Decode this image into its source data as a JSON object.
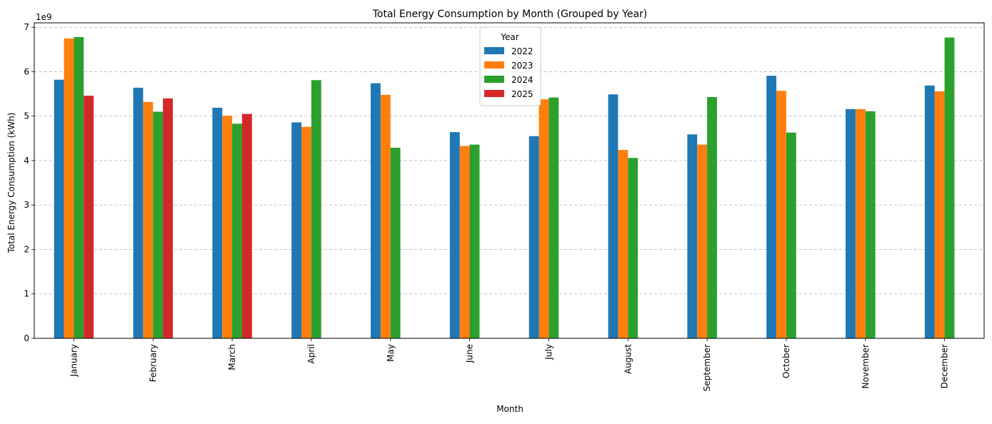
{
  "chart_data": {
    "type": "bar",
    "title": "Total Energy Consumption by Month (Grouped by Year)",
    "xlabel": "Month",
    "ylabel": "Total Energy Consumption (kWh)",
    "y_multiplier_label": "1e9",
    "y_multiplier": 1000000000,
    "ylim": [
      0,
      7.1
    ],
    "yticks": [
      0,
      1,
      2,
      3,
      4,
      5,
      6,
      7
    ],
    "grid": "y-dashed",
    "legend_title": "Year",
    "legend_position": "top-center",
    "categories": [
      "January",
      "February",
      "March",
      "April",
      "May",
      "June",
      "July",
      "August",
      "September",
      "October",
      "November",
      "December"
    ],
    "series": [
      {
        "name": "2022",
        "color": "#1f77b4",
        "values": [
          5.82,
          5.64,
          5.19,
          4.86,
          5.74,
          4.64,
          4.55,
          5.49,
          4.59,
          5.91,
          5.16,
          5.69
        ]
      },
      {
        "name": "2023",
        "color": "#ff7f0e",
        "values": [
          6.75,
          5.32,
          5.01,
          4.76,
          5.48,
          4.33,
          5.38,
          4.24,
          4.36,
          5.57,
          5.16,
          5.56
        ]
      },
      {
        "name": "2024",
        "color": "#2ca02c",
        "values": [
          6.78,
          5.1,
          4.83,
          5.81,
          4.29,
          4.36,
          5.42,
          4.06,
          5.43,
          4.63,
          5.11,
          6.77
        ]
      },
      {
        "name": "2025",
        "color": "#d62728",
        "values": [
          5.46,
          5.4,
          5.05,
          null,
          null,
          null,
          null,
          null,
          null,
          null,
          null,
          null
        ]
      }
    ]
  }
}
